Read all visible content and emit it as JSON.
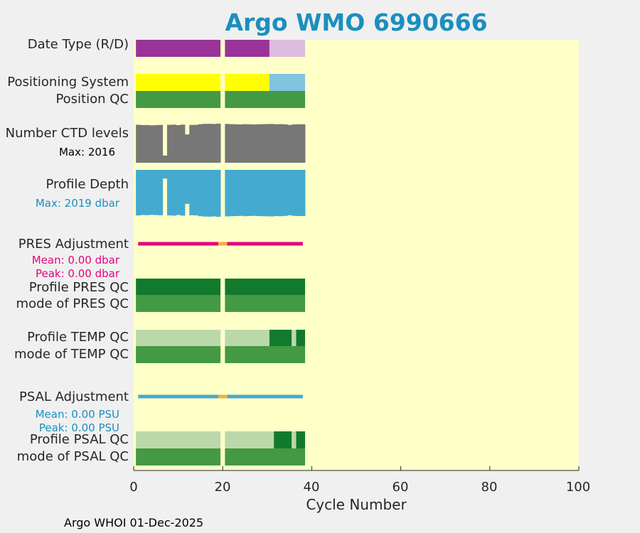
{
  "chart_data": {
    "type": "bar",
    "title": "Argo WMO 6990666",
    "xlabel": "Cycle Number",
    "xlim": [
      0,
      100
    ],
    "xticks": [
      0,
      20,
      40,
      60,
      80,
      100
    ],
    "cycle_range": [
      1,
      38
    ],
    "missing_cycles": [
      20
    ],
    "row_labels": [
      "Date Type (R/D)",
      "Positioning System",
      "Position QC",
      "Number CTD levels",
      "Profile Depth",
      "PRES Adjustment",
      "Profile PRES QC",
      "mode of PRES QC",
      "Profile TEMP QC",
      "mode of TEMP QC",
      "PSAL Adjustment",
      "Profile PSAL QC",
      "mode of PSAL QC"
    ],
    "ctd_levels_max": "Max: 2016",
    "profile_depth_max": "Max: 2019 dbar",
    "pres_adjustment": {
      "mean": "Mean: 0.00 dbar",
      "peak": "Peak: 0.00 dbar"
    },
    "psal_adjustment": {
      "mean": "Mean: 0.00 PSU",
      "peak": "Peak: 0.00 PSU"
    },
    "number_ctd_levels": [
      1960,
      1940,
      1945,
      1930,
      1940,
      1950,
      370,
      1955,
      1965,
      1940,
      1965,
      1460,
      1950,
      1955,
      1990,
      2005,
      2010,
      2000,
      2016,
      0,
      2000,
      1990,
      1985,
      1975,
      1990,
      1980,
      1975,
      1985,
      1990,
      1995,
      2000,
      1985,
      1990,
      1980,
      1950,
      1975,
      1985,
      1980
    ],
    "profile_depth_dbar": [
      1965,
      1945,
      1950,
      1935,
      1945,
      1955,
      375,
      1960,
      1970,
      1945,
      1970,
      1465,
      1955,
      1960,
      1995,
      2010,
      2015,
      2005,
      2019,
      0,
      2005,
      1995,
      1990,
      1980,
      1995,
      1985,
      1980,
      1990,
      1995,
      2000,
      2005,
      1990,
      1995,
      1985,
      1955,
      1980,
      1990,
      1985
    ],
    "date_type": [
      {
        "from": 1,
        "to": 19,
        "label": "D",
        "color": "#993399"
      },
      {
        "from": 21,
        "to": 30,
        "label": "D",
        "color": "#993399"
      },
      {
        "from": 31,
        "to": 38,
        "label": "R",
        "color": "#ddbbdd"
      }
    ],
    "positioning_system": [
      {
        "from": 1,
        "to": 19,
        "color": "#ffff00"
      },
      {
        "from": 21,
        "to": 30,
        "color": "#ffff00"
      },
      {
        "from": 31,
        "to": 38,
        "color": "#80c4e0"
      }
    ],
    "position_qc": [
      {
        "from": 1,
        "to": 19,
        "color": "#449944"
      },
      {
        "from": 21,
        "to": 38,
        "color": "#449944"
      }
    ],
    "profile_pres_qc": [
      {
        "from": 1,
        "to": 19,
        "color": "#117a2d"
      },
      {
        "from": 21,
        "to": 38,
        "color": "#117a2d"
      }
    ],
    "mode_pres_qc": [
      {
        "from": 1,
        "to": 19,
        "color": "#449944"
      },
      {
        "from": 21,
        "to": 38,
        "color": "#449944"
      }
    ],
    "profile_temp_qc": [
      {
        "from": 1,
        "to": 19,
        "color": "#bbd8aa"
      },
      {
        "from": 21,
        "to": 30,
        "color": "#bbd8aa"
      },
      {
        "from": 31,
        "to": 35,
        "color": "#117a2d"
      },
      {
        "from": 36,
        "to": 36,
        "color": "#bbd8aa"
      },
      {
        "from": 37,
        "to": 38,
        "color": "#117a2d"
      }
    ],
    "mode_temp_qc": [
      {
        "from": 1,
        "to": 19,
        "color": "#449944"
      },
      {
        "from": 21,
        "to": 38,
        "color": "#449944"
      }
    ],
    "profile_psal_qc": [
      {
        "from": 1,
        "to": 19,
        "color": "#bbd8aa"
      },
      {
        "from": 21,
        "to": 31,
        "color": "#bbd8aa"
      },
      {
        "from": 32,
        "to": 35,
        "color": "#117a2d"
      },
      {
        "from": 36,
        "to": 36,
        "color": "#bbd8aa"
      },
      {
        "from": 37,
        "to": 38,
        "color": "#117a2d"
      }
    ],
    "mode_psal_qc": [
      {
        "from": 1,
        "to": 19,
        "color": "#449944"
      },
      {
        "from": 21,
        "to": 38,
        "color": "#449944"
      }
    ],
    "pres_adjustment_values": [
      {
        "from": 1,
        "to": 19,
        "value": 0.0,
        "color": "#e6007e"
      },
      {
        "from": 19,
        "to": 21,
        "value": 0.0,
        "color": "#f0b040"
      },
      {
        "from": 21,
        "to": 38,
        "value": 0.0,
        "color": "#e6007e"
      }
    ],
    "psal_adjustment_values": [
      {
        "from": 1,
        "to": 19,
        "value": 0.0,
        "color": "#44aad0"
      },
      {
        "from": 19,
        "to": 21,
        "value": 0.0,
        "color": "#f0b040"
      },
      {
        "from": 21,
        "to": 38,
        "value": 0.0,
        "color": "#44aad0"
      }
    ]
  },
  "colors": {
    "plot_bg": "#ffffc8",
    "ctd": "#777777",
    "depth": "#44aad0",
    "pres": "#e6007e",
    "psal": "#1a8fbf",
    "title": "#1a8fbf"
  },
  "footer": "Argo WHOI 01-Dec-2025"
}
